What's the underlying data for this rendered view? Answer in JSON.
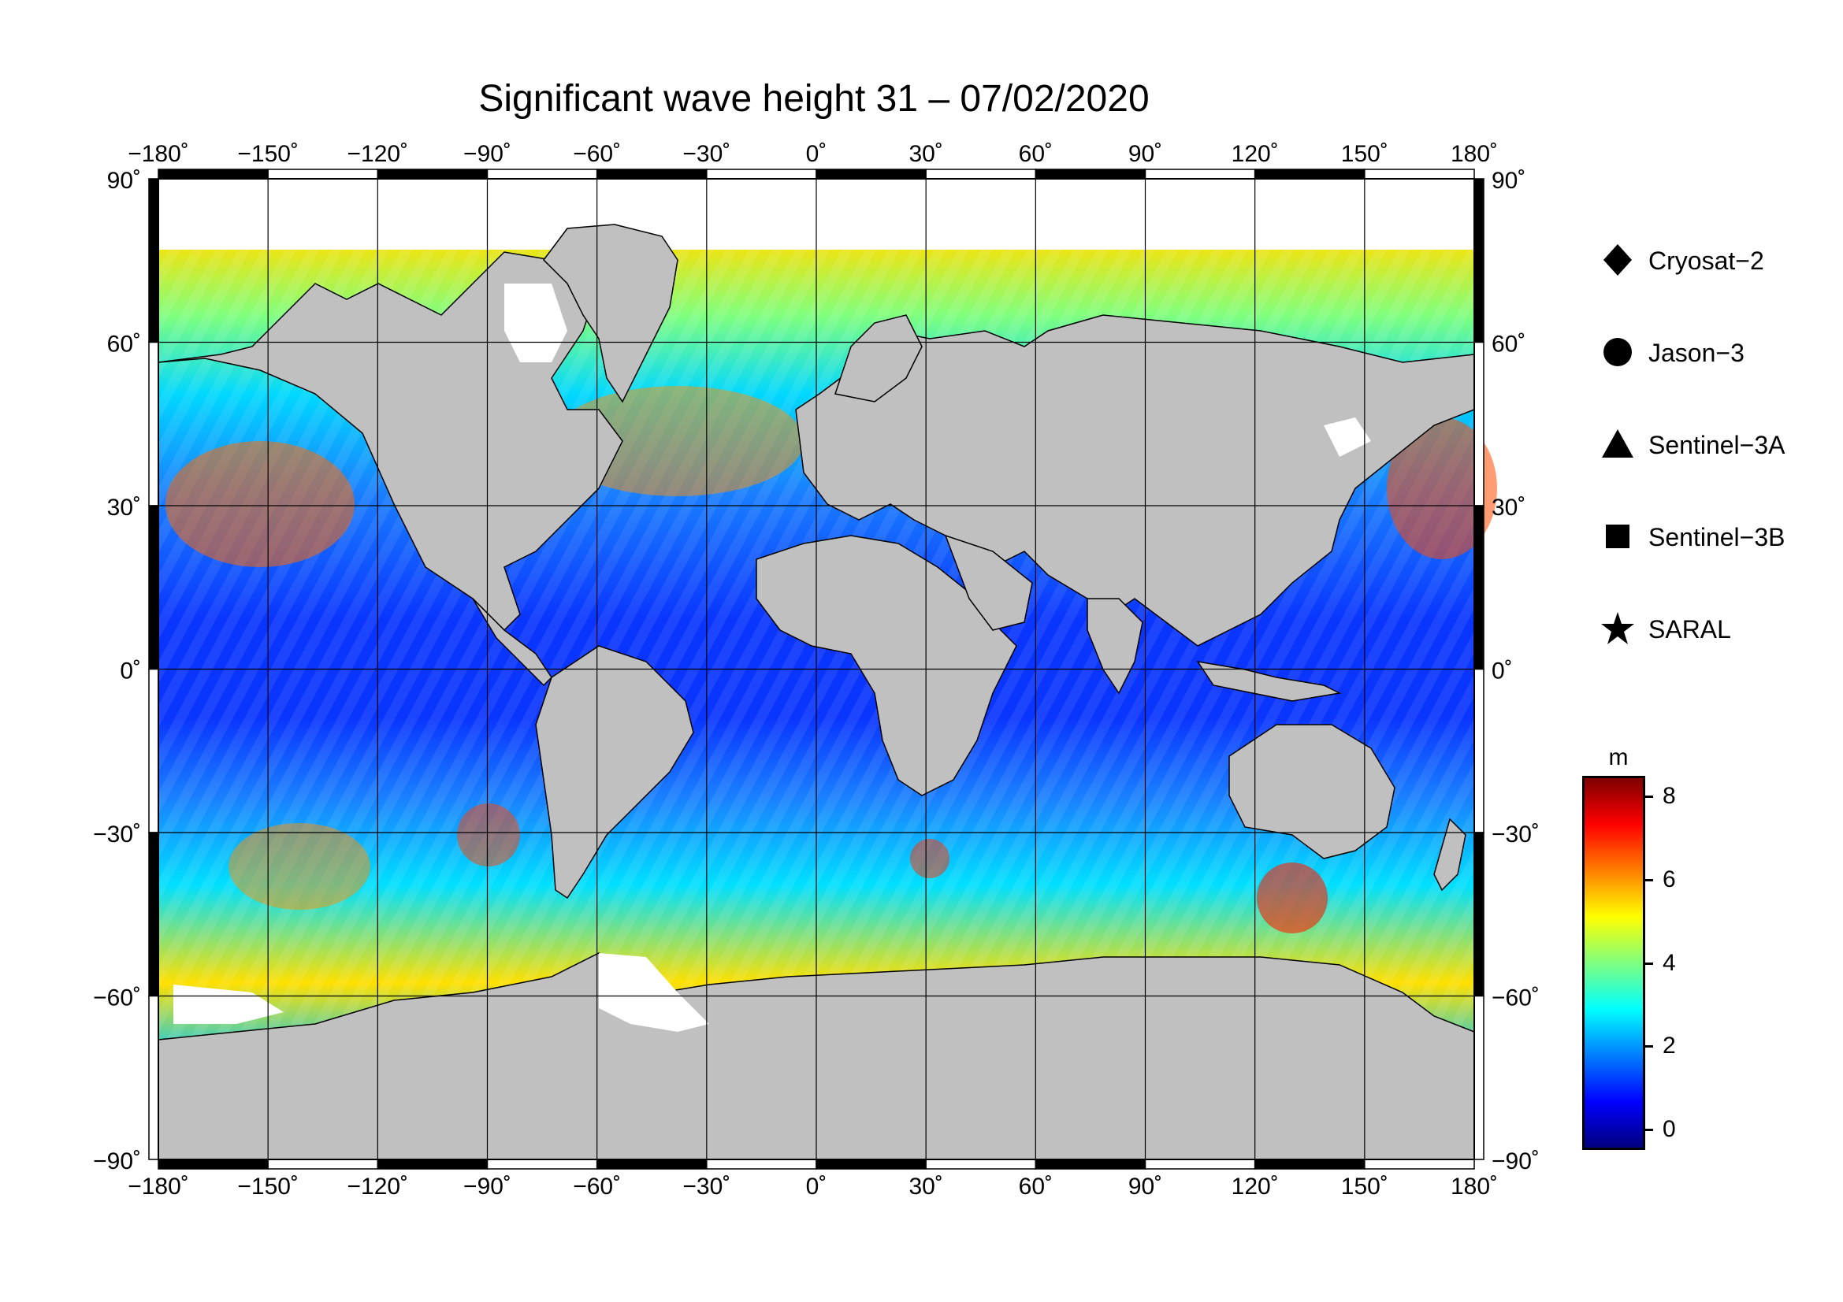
{
  "title": "Significant wave height 31 – 07/02/2020",
  "map": {
    "projection": "equirectangular",
    "lon_range": [
      -180,
      180
    ],
    "lat_range": [
      -90,
      90
    ],
    "lon_ticks": [
      "−180˚",
      "−150˚",
      "−120˚",
      "−90˚",
      "−60˚",
      "−30˚",
      "0˚",
      "30˚",
      "60˚",
      "90˚",
      "120˚",
      "150˚",
      "180˚"
    ],
    "lat_ticks": [
      "90˚",
      "60˚",
      "30˚",
      "0˚",
      "−30˚",
      "−60˚",
      "−90˚"
    ],
    "gridlines": true,
    "land_color": "#c0c0c0",
    "ice_color": "#ffffff"
  },
  "legend": {
    "placement": "right",
    "items": [
      {
        "label": "Cryosat−2",
        "symbol": "diamond"
      },
      {
        "label": "Jason−3",
        "symbol": "circle"
      },
      {
        "label": "Sentinel−3A",
        "symbol": "triangle"
      },
      {
        "label": "Sentinel−3B",
        "symbol": "square"
      },
      {
        "label": "SARAL",
        "symbol": "star"
      }
    ]
  },
  "colorbar": {
    "unit": "m",
    "min": -0.5,
    "max": 8.5,
    "ticks": [
      "8",
      "6",
      "4",
      "2",
      "0"
    ],
    "tick_values": [
      8,
      6,
      4,
      2,
      0
    ],
    "colors": [
      "#00007f",
      "#0000ff",
      "#007fff",
      "#00ffff",
      "#7fff7f",
      "#ffff00",
      "#ff7f00",
      "#ff0000",
      "#7f0000"
    ]
  }
}
